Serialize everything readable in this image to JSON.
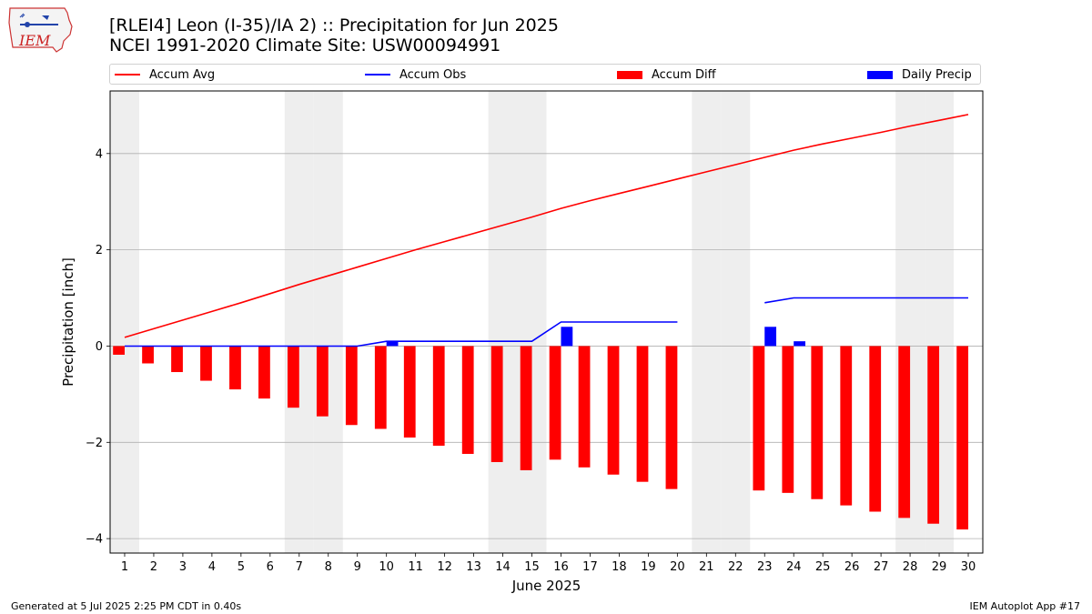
{
  "logo": {
    "text": "IEM"
  },
  "header": {
    "title": "[RLEI4] Leon (I-35)/IA 2) :: Precipitation for Jun 2025",
    "subtitle": "NCEI 1991-2020 Climate Site: USW00094991"
  },
  "legend": {
    "accum_avg": "Accum Avg",
    "accum_obs": "Accum Obs",
    "accum_diff": "Accum Diff",
    "daily_precip": "Daily Precip"
  },
  "footer": {
    "generated": "Generated at 5 Jul 2025 2:25 PM CDT in 0.40s",
    "app": "IEM Autoplot App #17"
  },
  "colors": {
    "avg": "#ff0000",
    "obs": "#0000ff",
    "diff": "#ff0000",
    "daily": "#0000ff",
    "weekend": "#eeeeee",
    "grid": "#b0b0b0"
  },
  "chart_data": {
    "type": "bar",
    "xlabel": "June 2025",
    "ylabel": "Precipitation [inch]",
    "xlim": [
      0.5,
      30.5
    ],
    "ylim": [
      -4.3,
      5.3
    ],
    "yticks": [
      -4,
      -2,
      0,
      2,
      4
    ],
    "ytick_labels": [
      "−4",
      "−2",
      "0",
      "2",
      "4"
    ],
    "grid": true,
    "legend_position": "top",
    "days": [
      1,
      2,
      3,
      4,
      5,
      6,
      7,
      8,
      9,
      10,
      11,
      12,
      13,
      14,
      15,
      16,
      17,
      18,
      19,
      20,
      21,
      22,
      23,
      24,
      25,
      26,
      27,
      28,
      29,
      30
    ],
    "weekend_days": [
      1,
      7,
      8,
      14,
      15,
      21,
      22,
      28,
      29
    ],
    "series": [
      {
        "name": "Accum Avg",
        "kind": "line",
        "values": [
          0.18,
          0.36,
          0.54,
          0.72,
          0.9,
          1.09,
          1.28,
          1.46,
          1.64,
          1.82,
          2.0,
          2.17,
          2.34,
          2.51,
          2.68,
          2.86,
          3.02,
          3.17,
          3.32,
          3.47,
          3.62,
          3.77,
          3.92,
          4.07,
          4.2,
          4.32,
          4.44,
          4.57,
          4.69,
          4.81
        ]
      },
      {
        "name": "Accum Obs",
        "kind": "line",
        "values": [
          0,
          0,
          0,
          0,
          0,
          0,
          0,
          0,
          0,
          0.1,
          0.1,
          0.1,
          0.1,
          0.1,
          0.1,
          0.5,
          0.5,
          0.5,
          0.5,
          0.5,
          null,
          null,
          0.9,
          1.0,
          1.0,
          1.0,
          1.0,
          1.0,
          1.0,
          1.0
        ]
      },
      {
        "name": "Accum Diff",
        "kind": "bar",
        "values": [
          -0.18,
          -0.36,
          -0.54,
          -0.72,
          -0.9,
          -1.09,
          -1.28,
          -1.46,
          -1.64,
          -1.72,
          -1.9,
          -2.07,
          -2.24,
          -2.41,
          -2.58,
          -2.36,
          -2.52,
          -2.67,
          -2.82,
          -2.97,
          null,
          null,
          -3.0,
          -3.05,
          -3.18,
          -3.31,
          -3.44,
          -3.57,
          -3.69,
          -3.81
        ]
      },
      {
        "name": "Daily Precip",
        "kind": "bar",
        "values": [
          0,
          0,
          0,
          0,
          0,
          0,
          0,
          0,
          0,
          0.1,
          0,
          0,
          0,
          0,
          0,
          0.4,
          0,
          0,
          0,
          0,
          null,
          null,
          0.4,
          0.1,
          0,
          0,
          0,
          0,
          0,
          0
        ]
      }
    ]
  }
}
